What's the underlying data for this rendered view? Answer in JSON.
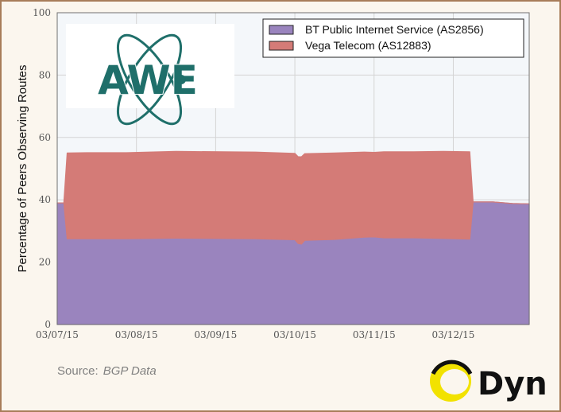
{
  "chart_data": {
    "type": "area",
    "title": "",
    "xlabel": "",
    "ylabel": "Percentage of Peers Observing Routes",
    "ylim": [
      0,
      100
    ],
    "xlim": [
      "03/07/15 00:00",
      "03/12/15 23:00"
    ],
    "y_ticks": [
      0,
      20,
      40,
      60,
      80,
      100
    ],
    "x_ticks": [
      "03/07/15",
      "03/08/15",
      "03/09/15",
      "03/10/15",
      "03/11/15",
      "03/12/15"
    ],
    "grid": true,
    "legend_position": "top-right",
    "stacked": true,
    "series": [
      {
        "name": "BT Public Internet Service (AS2856)",
        "color": "#9a84be",
        "x": [
          "03/07/15 00:00",
          "03/07/15 02:00",
          "03/07/15 03:00",
          "03/07/15 09:00",
          "03/07/15 21:00",
          "03/08/15 12:00",
          "03/09/15 12:00",
          "03/10/15 00:00",
          "03/10/15 01:00",
          "03/10/15 02:00",
          "03/10/15 03:00",
          "03/10/15 12:00",
          "03/10/15 21:00",
          "03/11/15 00:00",
          "03/11/15 03:00",
          "03/11/15 12:00",
          "03/11/15 21:00",
          "03/12/15 05:00",
          "03/12/15 06:00",
          "03/12/15 12:00",
          "03/12/15 18:00",
          "03/12/15 23:00"
        ],
        "values": [
          39,
          39,
          27.5,
          27.5,
          27.5,
          27.7,
          27.5,
          27.2,
          26,
          25.8,
          27,
          27.3,
          28,
          28.1,
          27.8,
          27.8,
          27.6,
          27.4,
          39.3,
          39.3,
          38.8,
          38.7
        ]
      },
      {
        "name": "Vega Telecom (AS12883)",
        "color": "#d47b77",
        "x": [
          "03/07/15 00:00",
          "03/07/15 02:00",
          "03/07/15 03:00",
          "03/07/15 09:00",
          "03/07/15 21:00",
          "03/08/15 12:00",
          "03/09/15 12:00",
          "03/10/15 00:00",
          "03/10/15 01:00",
          "03/10/15 02:00",
          "03/10/15 03:00",
          "03/10/15 12:00",
          "03/10/15 21:00",
          "03/11/15 00:00",
          "03/11/15 03:00",
          "03/11/15 12:00",
          "03/11/15 21:00",
          "03/12/15 05:00",
          "03/12/15 06:00",
          "03/12/15 12:00",
          "03/12/15 18:00",
          "03/12/15 23:00"
        ],
        "values": [
          0,
          0,
          27.5,
          27.6,
          27.6,
          27.8,
          27.8,
          27.7,
          27.8,
          28,
          27.8,
          27.7,
          27.3,
          27.1,
          27.6,
          27.6,
          27.9,
          28,
          0,
          0,
          0,
          0
        ]
      }
    ]
  },
  "source": {
    "label": "Source:",
    "value": "BGP Data"
  },
  "logos": {
    "left": "AWE",
    "right": "Dyn"
  },
  "colors": {
    "frame": "#a87d5a",
    "awe_teal": "#1f6f6a",
    "dyn_yellow": "#f2e200"
  }
}
